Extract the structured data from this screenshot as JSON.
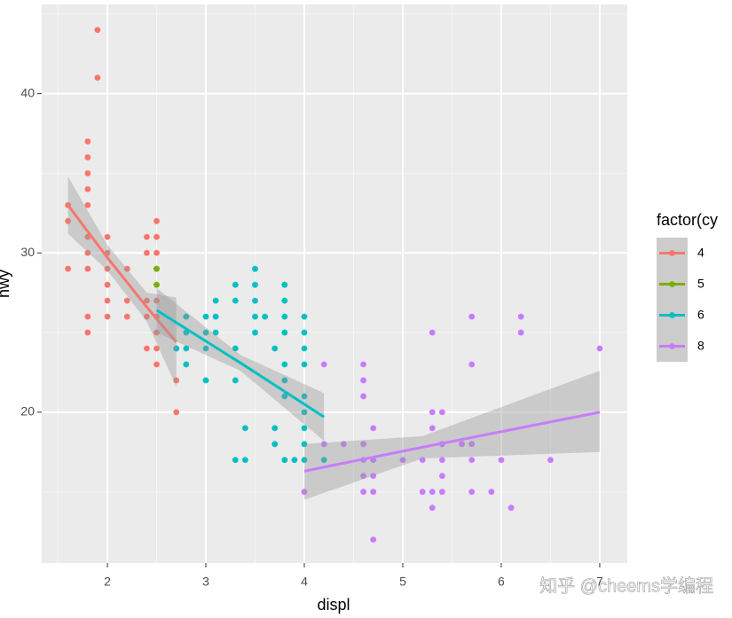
{
  "chart_data": {
    "type": "scatter",
    "x_label": "displ",
    "y_label": "hwy",
    "legend_title": "factor(cy",
    "legend_position": "right",
    "annotation": "知乎 @cheems学编程",
    "xlim": [
      1.333,
      7.28
    ],
    "ylim": [
      10.53,
      45.6
    ],
    "xticks": [
      2,
      3,
      4,
      5,
      6,
      7
    ],
    "yticks": [
      20,
      30,
      40
    ],
    "x_minor_ticks": [
      1.5,
      2.5,
      3.5,
      4.5,
      5.5,
      6.5
    ],
    "y_minor_ticks": [
      15,
      25,
      35,
      45
    ],
    "grid": true,
    "series": [
      {
        "name": "4",
        "color": "#F8766D",
        "x": [
          1.6,
          1.6,
          1.6,
          1.8,
          1.8,
          1.8,
          1.8,
          1.8,
          1.8,
          1.8,
          1.8,
          1.8,
          1.8,
          1.9,
          1.9,
          2.0,
          2.0,
          2.0,
          2.0,
          2.0,
          2.0,
          2.2,
          2.2,
          2.2,
          2.4,
          2.4,
          2.4,
          2.4,
          2.4,
          2.5,
          2.5,
          2.5,
          2.5,
          2.5,
          2.5,
          2.5,
          2.5,
          2.5,
          2.7,
          2.7,
          2.7
        ],
        "values": [
          29,
          32,
          33,
          25,
          26,
          29,
          30,
          31,
          33,
          34,
          35,
          36,
          37,
          41,
          44,
          26,
          27,
          28,
          29,
          30,
          31,
          26,
          27,
          29,
          24,
          26,
          27,
          30,
          31,
          23,
          24,
          25,
          26,
          27,
          29,
          30,
          31,
          32,
          20,
          22,
          24
        ],
        "fit": {
          "x": [
            1.6,
            2.0,
            2.4,
            2.7
          ],
          "values": [
            33.0,
            29.7,
            26.6,
            24.4
          ],
          "lower": [
            31.2,
            28.9,
            25.7,
            21.6
          ],
          "upper": [
            34.8,
            30.5,
            27.5,
            27.2
          ]
        }
      },
      {
        "name": "5",
        "color": "#7CAE00",
        "x": [
          2.5,
          2.5
        ],
        "values": [
          28,
          29
        ]
      },
      {
        "name": "6",
        "color": "#00BFC4",
        "x": [
          2.7,
          2.8,
          2.8,
          2.8,
          2.8,
          3.0,
          3.0,
          3.0,
          3.0,
          3.1,
          3.1,
          3.1,
          3.3,
          3.3,
          3.3,
          3.3,
          3.3,
          3.4,
          3.4,
          3.5,
          3.5,
          3.5,
          3.5,
          3.5,
          3.6,
          3.7,
          3.7,
          3.7,
          3.8,
          3.8,
          3.8,
          3.8,
          3.8,
          3.8,
          3.8,
          3.8,
          3.9,
          4.0,
          4.0,
          4.0,
          4.0,
          4.0,
          4.0,
          4.0,
          4.0,
          4.0,
          4.2
        ],
        "values": [
          24,
          23,
          24,
          25,
          26,
          22,
          24,
          25,
          26,
          25,
          26,
          27,
          17,
          22,
          24,
          27,
          28,
          17,
          19,
          25,
          26,
          27,
          28,
          29,
          26,
          18,
          19,
          24,
          17,
          21,
          22,
          23,
          25,
          26,
          27,
          28,
          17,
          17,
          18,
          19,
          20,
          21,
          23,
          24,
          25,
          26,
          17
        ],
        "fit": {
          "x": [
            2.5,
            3.35,
            4.2
          ],
          "values": [
            26.4,
            23.1,
            19.7
          ],
          "lower": [
            25.0,
            22.6,
            18.2
          ],
          "upper": [
            27.8,
            23.6,
            21.2
          ]
        }
      },
      {
        "name": "8",
        "color": "#C77CFF",
        "x": [
          4.0,
          4.2,
          4.2,
          4.4,
          4.6,
          4.6,
          4.6,
          4.6,
          4.6,
          4.6,
          4.6,
          4.7,
          4.7,
          4.7,
          4.7,
          4.7,
          5.0,
          5.2,
          5.2,
          5.3,
          5.3,
          5.3,
          5.3,
          5.3,
          5.4,
          5.4,
          5.4,
          5.4,
          5.4,
          5.6,
          5.7,
          5.7,
          5.7,
          5.7,
          5.7,
          5.9,
          6.0,
          6.1,
          6.2,
          6.2,
          6.5,
          7.0
        ],
        "values": [
          15,
          18,
          23,
          18,
          15,
          16,
          17,
          18,
          21,
          22,
          23,
          12,
          15,
          16,
          17,
          19,
          17,
          15,
          17,
          14,
          15,
          19,
          20,
          25,
          15,
          16,
          17,
          18,
          20,
          18,
          15,
          17,
          18,
          23,
          26,
          15,
          17,
          14,
          25,
          26,
          17,
          24
        ],
        "fit": {
          "x": [
            4.0,
            5.2,
            7.0
          ],
          "values": [
            16.3,
            17.8,
            20.0
          ],
          "lower": [
            14.5,
            17.1,
            17.5
          ],
          "upper": [
            18.0,
            18.5,
            22.6
          ]
        }
      }
    ]
  }
}
